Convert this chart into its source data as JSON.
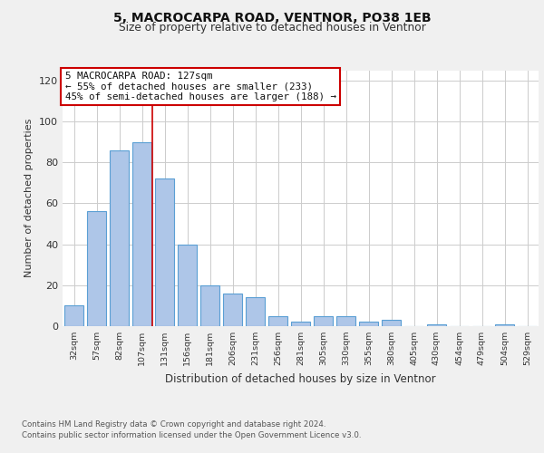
{
  "title1": "5, MACROCARPA ROAD, VENTNOR, PO38 1EB",
  "title2": "Size of property relative to detached houses in Ventnor",
  "xlabel": "Distribution of detached houses by size in Ventnor",
  "ylabel": "Number of detached properties",
  "categories": [
    "32sqm",
    "57sqm",
    "82sqm",
    "107sqm",
    "131sqm",
    "156sqm",
    "181sqm",
    "206sqm",
    "231sqm",
    "256sqm",
    "281sqm",
    "305sqm",
    "330sqm",
    "355sqm",
    "380sqm",
    "405sqm",
    "430sqm",
    "454sqm",
    "479sqm",
    "504sqm",
    "529sqm"
  ],
  "values": [
    10,
    56,
    86,
    90,
    72,
    40,
    20,
    16,
    14,
    5,
    2,
    5,
    5,
    2,
    3,
    0,
    1,
    0,
    0,
    1,
    0
  ],
  "bar_color": "#aec6e8",
  "bar_edge_color": "#5a9fd4",
  "ylim": [
    0,
    125
  ],
  "yticks": [
    0,
    20,
    40,
    60,
    80,
    100,
    120
  ],
  "annotation_title": "5 MACROCARPA ROAD: 127sqm",
  "annotation_line1": "← 55% of detached houses are smaller (233)",
  "annotation_line2": "45% of semi-detached houses are larger (188) →",
  "footer1": "Contains HM Land Registry data © Crown copyright and database right 2024.",
  "footer2": "Contains public sector information licensed under the Open Government Licence v3.0.",
  "background_color": "#f0f0f0",
  "plot_bg_color": "#ffffff",
  "grid_color": "#cccccc",
  "annotation_box_color": "#ffffff",
  "annotation_box_edge": "#cc0000",
  "vline_color": "#cc0000",
  "vline_x": 3.47
}
